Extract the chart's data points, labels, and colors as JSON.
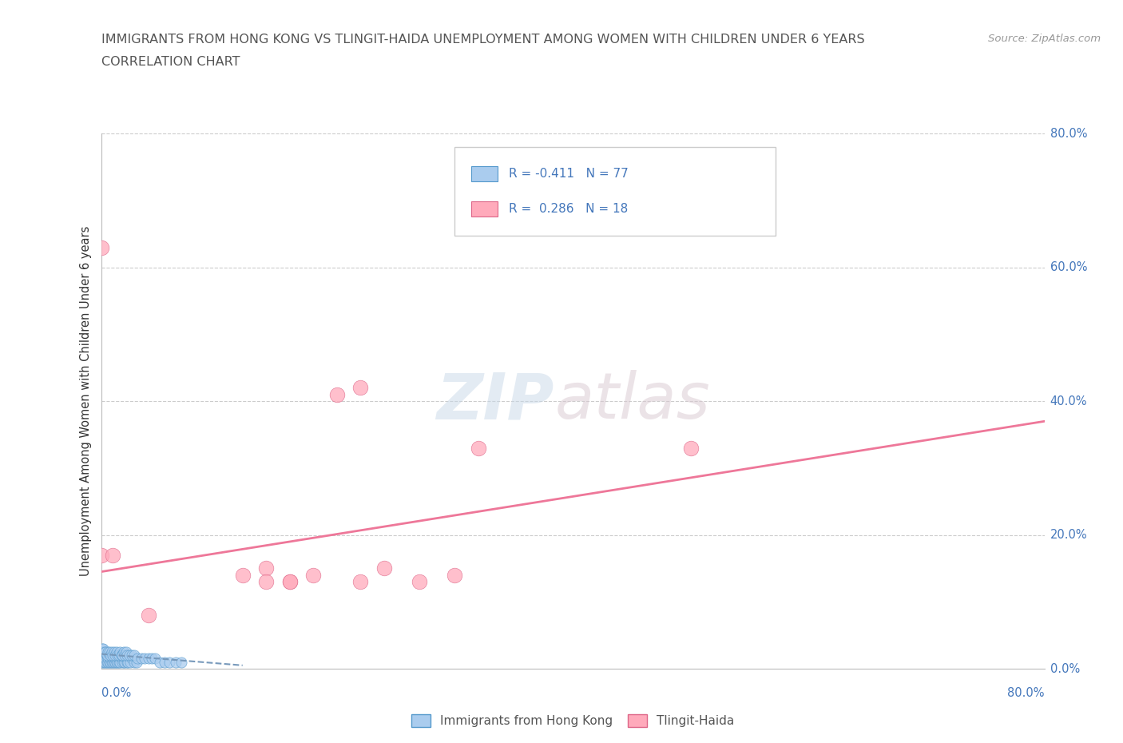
{
  "title_line1": "IMMIGRANTS FROM HONG KONG VS TLINGIT-HAIDA UNEMPLOYMENT AMONG WOMEN WITH CHILDREN UNDER 6 YEARS",
  "title_line2": "CORRELATION CHART",
  "source_text": "Source: ZipAtlas.com",
  "watermark_zip": "ZIP",
  "watermark_atlas": "atlas",
  "ylabel_label": "Unemployment Among Women with Children Under 6 years",
  "legend_label1": "Immigrants from Hong Kong",
  "legend_label2": "Tlingit-Haida",
  "R1": -0.411,
  "N1": 77,
  "R2": 0.286,
  "N2": 18,
  "color_blue_fill": "#aaccee",
  "color_blue_edge": "#5599cc",
  "color_pink_fill": "#ffaabb",
  "color_pink_edge": "#dd6688",
  "color_trendline_blue": "#7799bb",
  "color_trendline_pink": "#ee7799",
  "color_text_blue": "#4477bb",
  "color_title": "#555555",
  "color_grid": "#cccccc",
  "color_source": "#999999",
  "blue_x": [
    0.001,
    0.002,
    0.002,
    0.003,
    0.003,
    0.004,
    0.004,
    0.005,
    0.005,
    0.006,
    0.006,
    0.007,
    0.007,
    0.008,
    0.008,
    0.009,
    0.009,
    0.01,
    0.01,
    0.011,
    0.011,
    0.012,
    0.012,
    0.013,
    0.013,
    0.014,
    0.015,
    0.015,
    0.016,
    0.017,
    0.018,
    0.019,
    0.02,
    0.021,
    0.022,
    0.023,
    0.025,
    0.026,
    0.028,
    0.03,
    0.001,
    0.001,
    0.002,
    0.003,
    0.004,
    0.005,
    0.006,
    0.007,
    0.008,
    0.009,
    0.01,
    0.011,
    0.012,
    0.013,
    0.014,
    0.015,
    0.016,
    0.017,
    0.018,
    0.019,
    0.02,
    0.021,
    0.022,
    0.024,
    0.026,
    0.028,
    0.031,
    0.034,
    0.037,
    0.04,
    0.043,
    0.046,
    0.05,
    0.054,
    0.058,
    0.063,
    0.068
  ],
  "blue_y": [
    0.01,
    0.01,
    0.02,
    0.01,
    0.02,
    0.01,
    0.015,
    0.01,
    0.02,
    0.01,
    0.015,
    0.01,
    0.02,
    0.01,
    0.015,
    0.01,
    0.02,
    0.01,
    0.015,
    0.01,
    0.02,
    0.01,
    0.015,
    0.01,
    0.02,
    0.01,
    0.01,
    0.015,
    0.01,
    0.015,
    0.01,
    0.01,
    0.01,
    0.015,
    0.01,
    0.01,
    0.01,
    0.015,
    0.01,
    0.01,
    0.03,
    0.025,
    0.03,
    0.025,
    0.025,
    0.02,
    0.025,
    0.025,
    0.02,
    0.025,
    0.02,
    0.025,
    0.02,
    0.025,
    0.02,
    0.02,
    0.025,
    0.02,
    0.02,
    0.025,
    0.02,
    0.025,
    0.02,
    0.02,
    0.02,
    0.02,
    0.015,
    0.015,
    0.015,
    0.015,
    0.015,
    0.015,
    0.01,
    0.01,
    0.01,
    0.01,
    0.01
  ],
  "pink_x": [
    0.0,
    0.0,
    0.01,
    0.04,
    0.12,
    0.14,
    0.16,
    0.18,
    0.2,
    0.22,
    0.14,
    0.16,
    0.22,
    0.24,
    0.27,
    0.3,
    0.32,
    0.5
  ],
  "pink_y": [
    0.63,
    0.17,
    0.17,
    0.08,
    0.14,
    0.15,
    0.13,
    0.14,
    0.41,
    0.42,
    0.13,
    0.13,
    0.13,
    0.15,
    0.13,
    0.14,
    0.33,
    0.33
  ],
  "pink_trend_x": [
    0.0,
    0.8
  ],
  "pink_trend_y": [
    0.145,
    0.37
  ],
  "blue_trend_x": [
    0.0,
    0.12
  ],
  "blue_trend_y": [
    0.022,
    0.005
  ],
  "xlim": [
    0.0,
    0.8
  ],
  "ylim": [
    0.0,
    0.8
  ],
  "ytick_positions": [
    0.0,
    0.2,
    0.4,
    0.6,
    0.8
  ],
  "ytick_labels_right": [
    "0.0%",
    "20.0%",
    "40.0%",
    "60.0%",
    "80.0%"
  ],
  "xtick_label_left": "0.0%",
  "xtick_label_right": "80.0%"
}
